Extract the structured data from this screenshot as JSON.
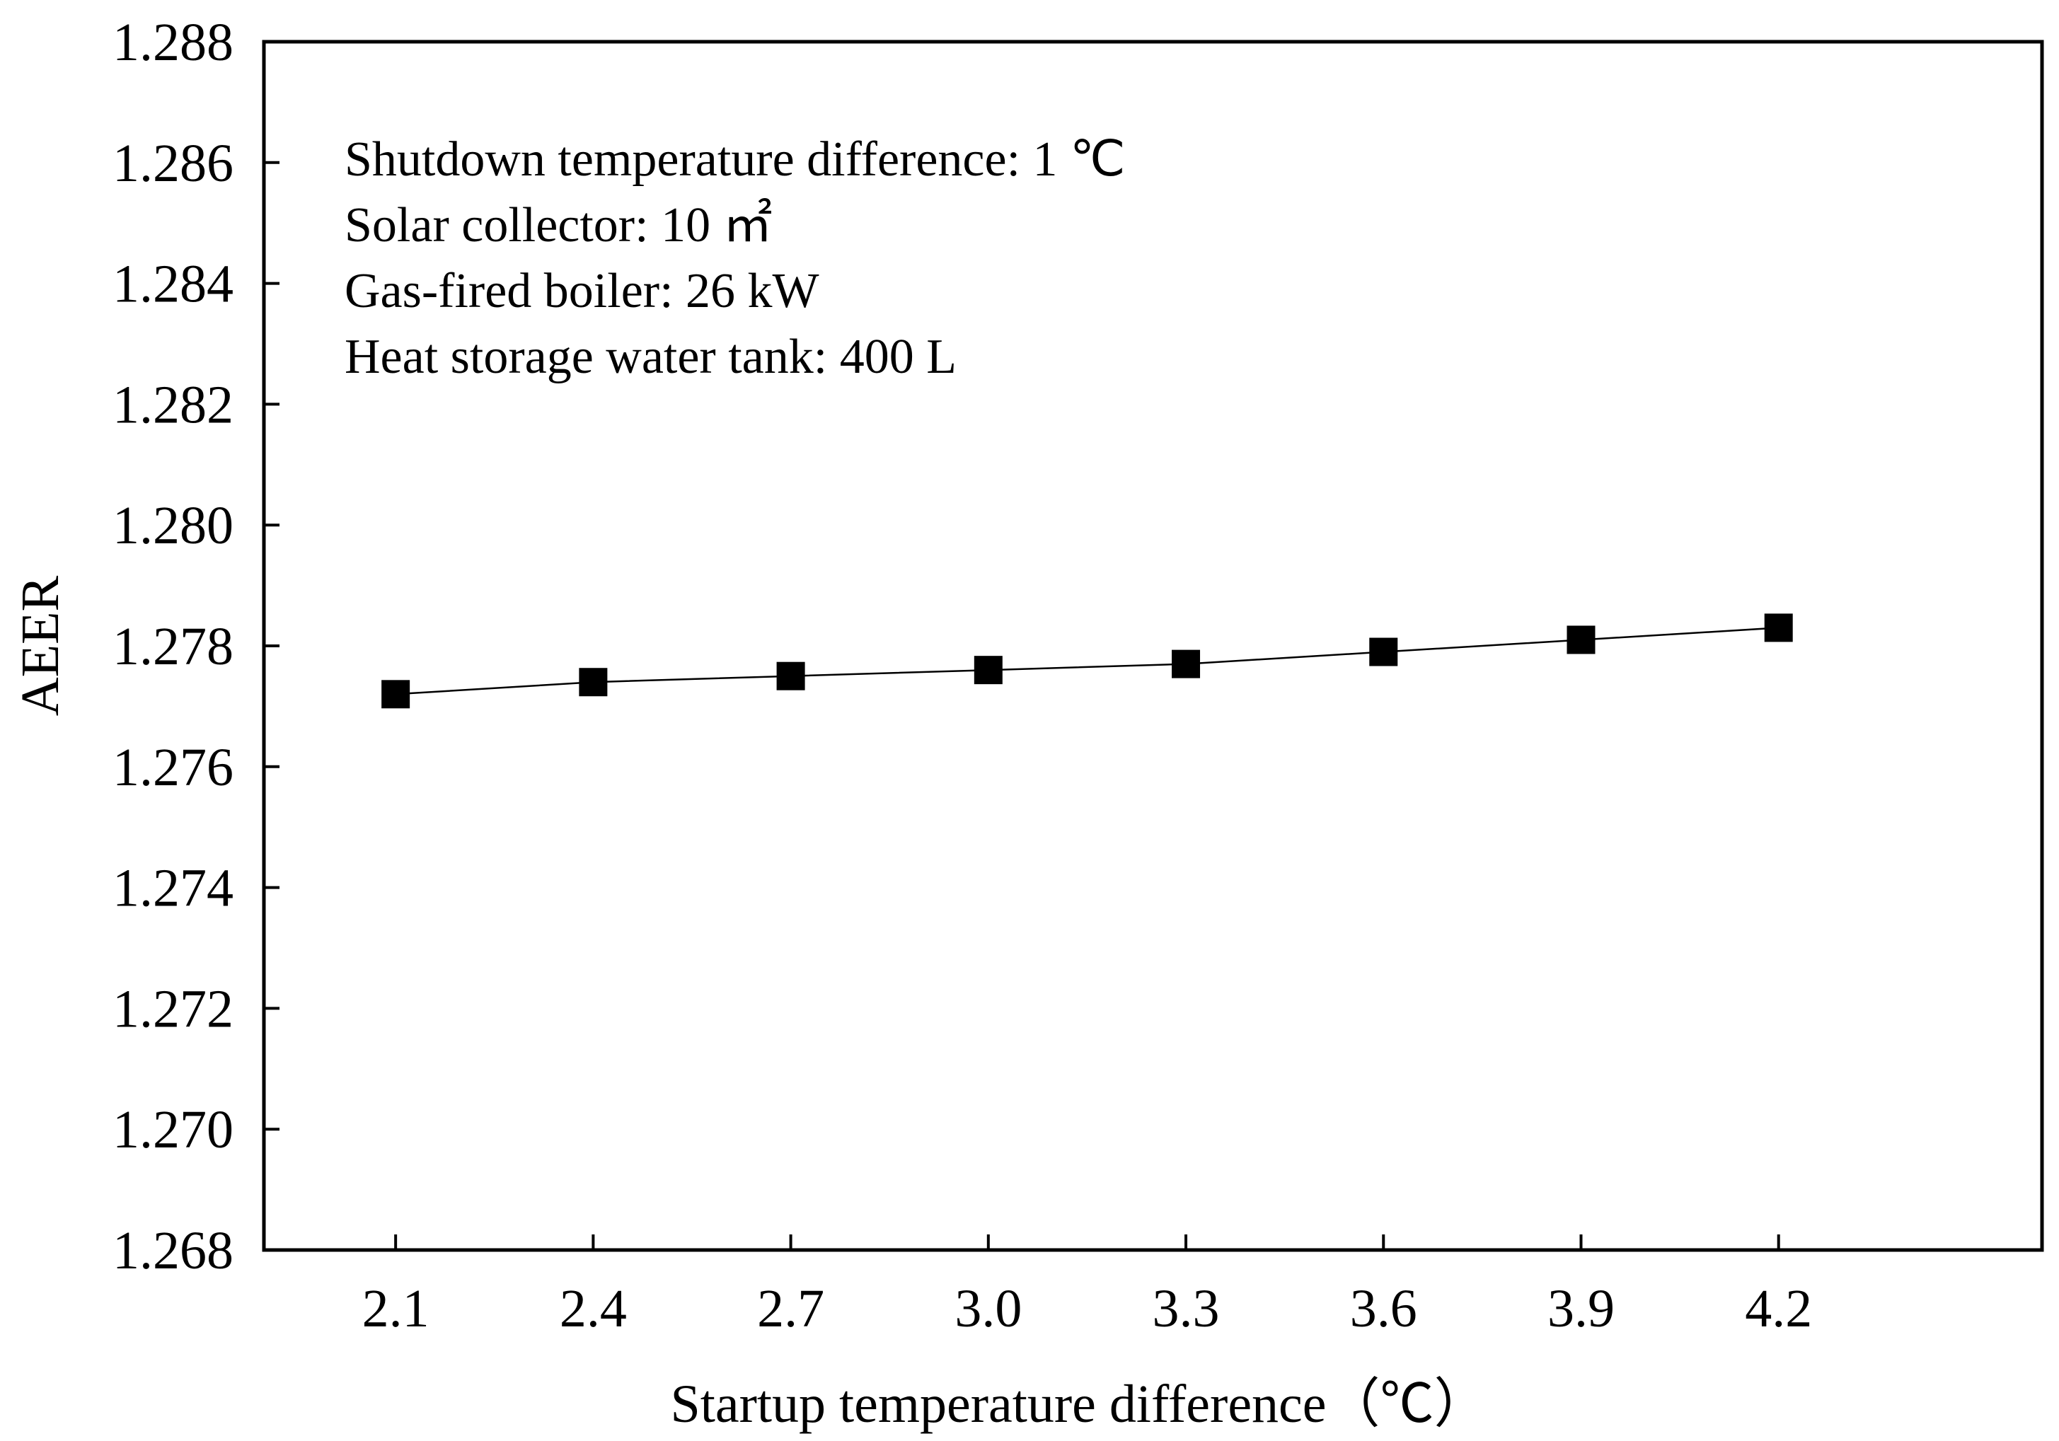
{
  "chart_data": {
    "type": "line",
    "title": "",
    "xlabel": "Startup temperature difference（℃）",
    "ylabel": "AEER",
    "x": [
      2.1,
      2.4,
      2.7,
      3.0,
      3.3,
      3.6,
      3.9,
      4.2
    ],
    "x_tick_labels": [
      "2.1",
      "2.4",
      "2.7",
      "3.0",
      "3.3",
      "3.6",
      "3.9",
      "4.2"
    ],
    "xlim": [
      1.9,
      4.6
    ],
    "ylim": [
      1.268,
      1.288
    ],
    "y_ticks": [
      1.268,
      1.27,
      1.272,
      1.274,
      1.276,
      1.278,
      1.28,
      1.282,
      1.284,
      1.286,
      1.288
    ],
    "y_tick_labels": [
      "1.268",
      "1.270",
      "1.272",
      "1.274",
      "1.276",
      "1.278",
      "1.280",
      "1.282",
      "1.284",
      "1.286",
      "1.288"
    ],
    "series": [
      {
        "name": "AEER",
        "marker": "square",
        "color": "#000000",
        "values": [
          1.2772,
          1.2774,
          1.2775,
          1.2776,
          1.2777,
          1.2779,
          1.2781,
          1.2783
        ]
      }
    ],
    "annotations": [
      "Shutdown temperature difference: 1 ℃",
      "Solar collector: 10 ㎡",
      "Gas-fired boiler: 26 kW",
      "Heat storage water tank: 400 L"
    ],
    "grid": false,
    "legend": "none"
  }
}
